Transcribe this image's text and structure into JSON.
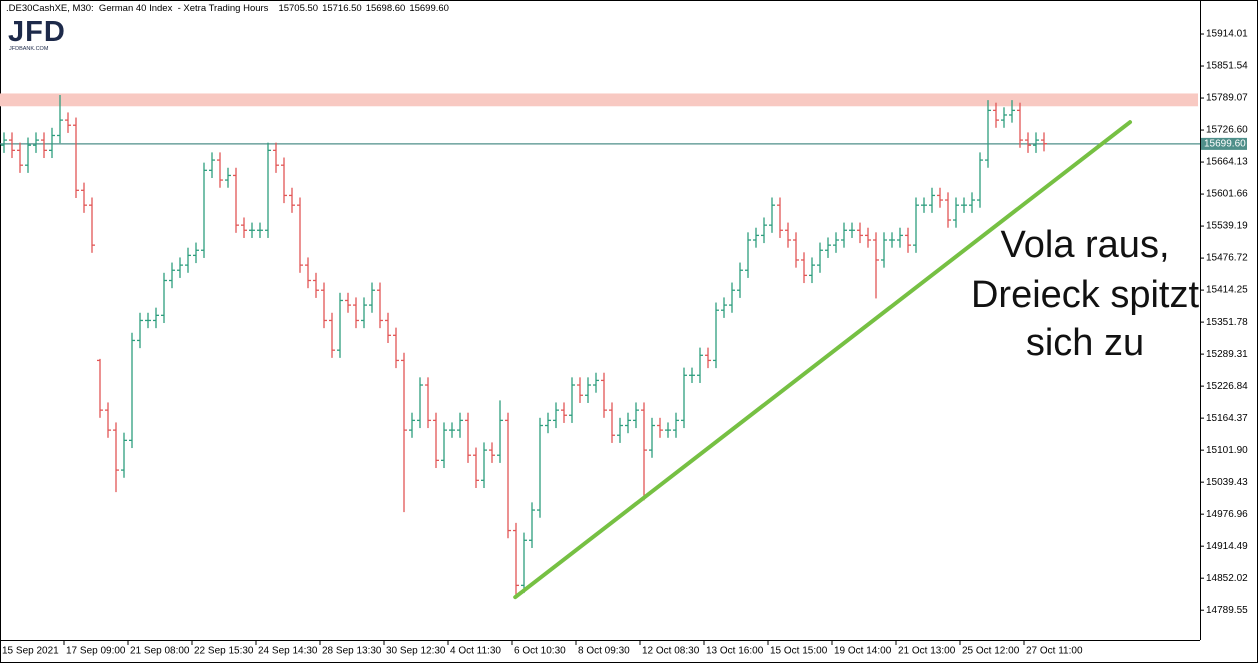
{
  "chart_data": {
    "type": "ohlc",
    "title": ".DE30CashXE, M30:  German 40 Index  - Xetra Trading Hours",
    "header_ohlc": [
      "15705.50",
      "15716.50",
      "15698.60",
      "15699.60"
    ],
    "logo": {
      "text": "JFD",
      "site": "JFDBANK.COM"
    },
    "up_color": "#2e9e7e",
    "down_color": "#e15656",
    "ylim": [
      14731.4,
      15980.4
    ],
    "yticks": [
      15914.01,
      15851.54,
      15789.07,
      {
        "value": 15726.6,
        "label": "15726.60"
      },
      15664.13,
      15601.66,
      15539.19,
      15476.72,
      15414.25,
      15351.78,
      15289.31,
      15226.84,
      15164.37,
      {
        "value": 15101.9,
        "label": "15101.90"
      },
      15039.43,
      14976.96,
      14914.49,
      14852.02,
      14789.55
    ],
    "last_price": {
      "value": 15699.6,
      "label": "15699.60"
    },
    "last_price_color": "#4f8f8a",
    "zone": [
      15773,
      15798
    ],
    "zone_color": "#f8c9c2",
    "trendline": {
      "from": [
        63.9,
        14815
      ],
      "to": [
        140.75,
        15742
      ],
      "color": "#76c043"
    },
    "annotation": [
      "Vola raus,",
      "Dreieck spitzt",
      "sich zu"
    ],
    "categories": [
      null,
      null,
      null,
      "15 Sep 2021",
      null,
      null,
      null,
      null,
      null,
      null,
      null,
      "17 Sep 09:00",
      null,
      null,
      null,
      null,
      null,
      null,
      null,
      "21 Sep 08:00",
      null,
      null,
      null,
      null,
      null,
      null,
      null,
      "22 Sep 15:30",
      null,
      null,
      null,
      null,
      null,
      null,
      null,
      "24 Sep 14:30",
      null,
      null,
      null,
      null,
      null,
      null,
      null,
      "28 Sep 13:30",
      null,
      null,
      null,
      null,
      null,
      null,
      null,
      "30 Sep 12:30",
      null,
      null,
      null,
      null,
      null,
      null,
      null,
      "4 Oct 11:30",
      null,
      null,
      null,
      null,
      null,
      null,
      null,
      "6 Oct 10:30",
      null,
      null,
      null,
      null,
      null,
      null,
      null,
      "8 Oct 09:30",
      null,
      null,
      null,
      null,
      null,
      null,
      null,
      "12 Oct 08:30",
      null,
      null,
      null,
      null,
      null,
      null,
      null,
      "13 Oct 16:00",
      null,
      null,
      null,
      null,
      null,
      null,
      null,
      "15 Oct 15:00",
      null,
      null,
      null,
      null,
      null,
      null,
      null,
      "19 Oct 14:00",
      null,
      null,
      null,
      null,
      null,
      null,
      null,
      "21 Oct 13:00",
      null,
      null,
      null,
      null,
      null,
      null,
      null,
      "25 Oct 12:00",
      null,
      null,
      null,
      null,
      null,
      null,
      null,
      "27 Oct 11:00"
    ],
    "ohlc": [
      [
        15697,
        15722,
        15682,
        15707
      ],
      [
        15707,
        15722,
        15672,
        15687
      ],
      [
        15687,
        15702,
        15643,
        15658
      ],
      [
        15658,
        15712,
        15643,
        15697
      ],
      [
        15697,
        15722,
        15682,
        15707
      ],
      [
        15707,
        15722,
        15672,
        15687
      ],
      [
        15687,
        15731,
        15672,
        15716
      ],
      [
        15716,
        15795,
        15701,
        15746
      ],
      [
        15746,
        15761,
        15721,
        15736
      ],
      [
        15736,
        15751,
        15594,
        15609
      ],
      [
        15609,
        15624,
        15565,
        15580
      ],
      [
        15580,
        15595,
        15487,
        15502
      ],
      [
        15277,
        15280,
        15165,
        15180
      ],
      [
        15180,
        15195,
        15126,
        15141
      ],
      [
        15141,
        15156,
        15020,
        15063
      ],
      [
        15063,
        15136,
        15048,
        15121
      ],
      [
        15121,
        15331,
        15106,
        15316
      ],
      [
        15316,
        15370,
        15301,
        15355
      ],
      [
        15355,
        15370,
        15340,
        15355
      ],
      [
        15355,
        15380,
        15340,
        15365
      ],
      [
        15365,
        15448,
        15350,
        15433
      ],
      [
        15433,
        15468,
        15418,
        15453
      ],
      [
        15453,
        15478,
        15438,
        15463
      ],
      [
        15463,
        15497,
        15448,
        15482
      ],
      [
        15482,
        15507,
        15467,
        15492
      ],
      [
        15492,
        15663,
        15477,
        15648
      ],
      [
        15648,
        15683,
        15633,
        15668
      ],
      [
        15668,
        15683,
        15614,
        15629
      ],
      [
        15629,
        15653,
        15614,
        15638
      ],
      [
        15638,
        15653,
        15526,
        15541
      ],
      [
        15541,
        15556,
        15516,
        15531
      ],
      [
        15531,
        15546,
        15516,
        15531
      ],
      [
        15531,
        15546,
        15516,
        15531
      ],
      [
        15531,
        15702,
        15516,
        15687
      ],
      [
        15687,
        15702,
        15643,
        15658
      ],
      [
        15658,
        15673,
        15584,
        15599
      ],
      [
        15599,
        15614,
        15565,
        15580
      ],
      [
        15580,
        15595,
        15448,
        15463
      ],
      [
        15463,
        15478,
        15418,
        15433
      ],
      [
        15433,
        15448,
        15399,
        15414
      ],
      [
        15414,
        15429,
        15340,
        15355
      ],
      [
        15355,
        15370,
        15282,
        15297
      ],
      [
        15297,
        15409,
        15282,
        15394
      ],
      [
        15394,
        15409,
        15370,
        15385
      ],
      [
        15385,
        15400,
        15340,
        15355
      ],
      [
        15355,
        15400,
        15340,
        15385
      ],
      [
        15385,
        15429,
        15370,
        15414
      ],
      [
        15414,
        15429,
        15340,
        15355
      ],
      [
        15355,
        15370,
        15311,
        15326
      ],
      [
        15326,
        15341,
        15262,
        15277
      ],
      [
        15277,
        15292,
        14981,
        15141
      ],
      [
        15141,
        15175,
        15126,
        15160
      ],
      [
        15160,
        15244,
        15145,
        15229
      ],
      [
        15229,
        15244,
        15145,
        15160
      ],
      [
        15160,
        15175,
        15067,
        15082
      ],
      [
        15082,
        15156,
        15067,
        15141
      ],
      [
        15141,
        15156,
        15126,
        15141
      ],
      [
        15141,
        15175,
        15126,
        15160
      ],
      [
        15160,
        15175,
        15077,
        15092
      ],
      [
        15092,
        15107,
        15028,
        15043
      ],
      [
        15043,
        15117,
        15028,
        15102
      ],
      [
        15102,
        15117,
        15077,
        15092
      ],
      [
        15092,
        15199,
        15077,
        15160
      ],
      [
        15160,
        15175,
        14930,
        14945
      ],
      [
        14945,
        14960,
        14815,
        14838
      ],
      [
        14838,
        14941,
        14823,
        14926
      ],
      [
        14926,
        15000,
        14911,
        14985
      ],
      [
        14985,
        15165,
        14970,
        15150
      ],
      [
        15150,
        15175,
        15135,
        15160
      ],
      [
        15160,
        15195,
        15145,
        15180
      ],
      [
        15180,
        15195,
        15155,
        15170
      ],
      [
        15170,
        15244,
        15155,
        15229
      ],
      [
        15229,
        15244,
        15194,
        15209
      ],
      [
        15209,
        15244,
        15194,
        15229
      ],
      [
        15229,
        15253,
        15214,
        15238
      ],
      [
        15238,
        15253,
        15165,
        15180
      ],
      [
        15180,
        15195,
        15116,
        15131
      ],
      [
        15131,
        15165,
        15116,
        15150
      ],
      [
        15150,
        15175,
        15135,
        15160
      ],
      [
        15160,
        15195,
        15145,
        15180
      ],
      [
        15180,
        15195,
        15004,
        15102
      ],
      [
        15102,
        15165,
        15087,
        15150
      ],
      [
        15150,
        15165,
        15126,
        15141
      ],
      [
        15141,
        15156,
        15126,
        15141
      ],
      [
        15141,
        15175,
        15126,
        15160
      ],
      [
        15160,
        15263,
        15145,
        15248
      ],
      [
        15248,
        15263,
        15233,
        15248
      ],
      [
        15248,
        15302,
        15233,
        15287
      ],
      [
        15287,
        15302,
        15262,
        15277
      ],
      [
        15277,
        15390,
        15262,
        15375
      ],
      [
        15375,
        15400,
        15360,
        15385
      ],
      [
        15385,
        15429,
        15370,
        15414
      ],
      [
        15414,
        15468,
        15399,
        15453
      ],
      [
        15453,
        15527,
        15438,
        15512
      ],
      [
        15512,
        15536,
        15497,
        15521
      ],
      [
        15521,
        15556,
        15506,
        15541
      ],
      [
        15541,
        15595,
        15526,
        15580
      ],
      [
        15580,
        15595,
        15516,
        15531
      ],
      [
        15531,
        15546,
        15497,
        15512
      ],
      [
        15512,
        15527,
        15458,
        15473
      ],
      [
        15473,
        15488,
        15428,
        15443
      ],
      [
        15443,
        15478,
        15428,
        15463
      ],
      [
        15463,
        15507,
        15448,
        15492
      ],
      [
        15492,
        15517,
        15477,
        15502
      ],
      [
        15502,
        15527,
        15487,
        15512
      ],
      [
        15512,
        15546,
        15497,
        15531
      ],
      [
        15531,
        15546,
        15516,
        15531
      ],
      [
        15531,
        15546,
        15506,
        15521
      ],
      [
        15521,
        15536,
        15497,
        15512
      ],
      [
        15512,
        15527,
        15398,
        15473
      ],
      [
        15473,
        15527,
        15458,
        15512
      ],
      [
        15512,
        15527,
        15497,
        15512
      ],
      [
        15512,
        15536,
        15497,
        15521
      ],
      [
        15521,
        15536,
        15487,
        15502
      ],
      [
        15502,
        15595,
        15487,
        15580
      ],
      [
        15580,
        15595,
        15565,
        15580
      ],
      [
        15580,
        15614,
        15565,
        15599
      ],
      [
        15599,
        15614,
        15575,
        15590
      ],
      [
        15590,
        15605,
        15536,
        15551
      ],
      [
        15551,
        15595,
        15536,
        15580
      ],
      [
        15580,
        15595,
        15565,
        15580
      ],
      [
        15580,
        15605,
        15565,
        15590
      ],
      [
        15590,
        15683,
        15575,
        15668
      ],
      [
        15668,
        15785,
        15653,
        15765
      ],
      [
        15765,
        15780,
        15731,
        15746
      ],
      [
        15746,
        15771,
        15731,
        15756
      ],
      [
        15756,
        15785,
        15741,
        15765
      ],
      [
        15765,
        15780,
        15692,
        15707
      ],
      [
        15707,
        15722,
        15682,
        15697
      ],
      [
        15697,
        15722,
        15682,
        15707
      ],
      [
        15707,
        15722,
        15685,
        15700
      ],
      null
    ]
  }
}
